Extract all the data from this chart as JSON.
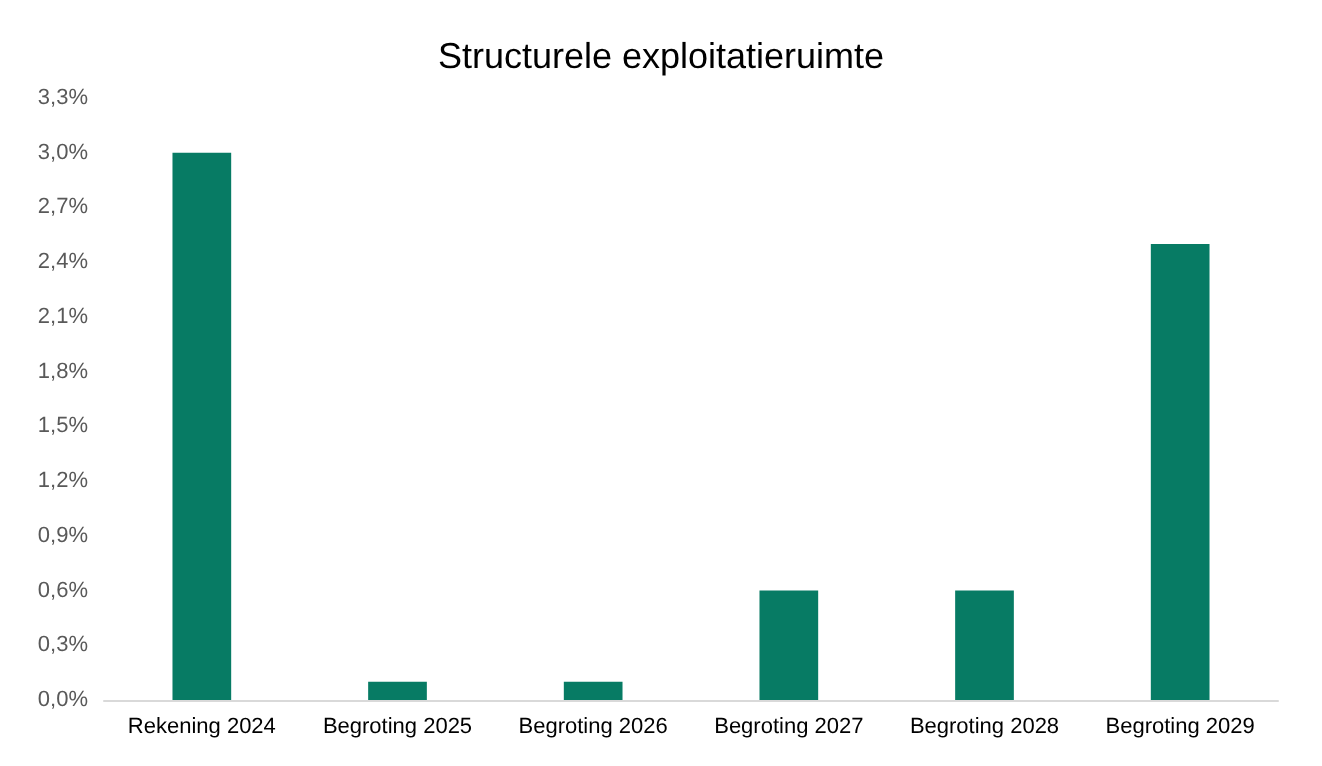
{
  "chart_data": {
    "type": "bar",
    "title": "Structurele exploitatieruimte",
    "categories": [
      "Rekening 2024",
      "Begroting 2025",
      "Begroting 2026",
      "Begroting 2027",
      "Begroting 2028",
      "Begroting 2029"
    ],
    "values": [
      3.0,
      0.1,
      0.1,
      0.6,
      0.6,
      2.5
    ],
    "color": "#077b64",
    "ylim": [
      0,
      3.3
    ],
    "yticks": [
      {
        "value": 0,
        "label": "0,0%"
      },
      {
        "value": 0.3,
        "label": "0,3%"
      },
      {
        "value": 0.6,
        "label": "0,6%"
      },
      {
        "value": 0.9,
        "label": "0,9%"
      },
      {
        "value": 1.2,
        "label": "1,2%"
      },
      {
        "value": 1.5,
        "label": "1,5%"
      },
      {
        "value": 1.8,
        "label": "1,8%"
      },
      {
        "value": 2.1,
        "label": "2,1%"
      },
      {
        "value": 2.4,
        "label": "2,4%"
      },
      {
        "value": 2.7,
        "label": "2,7%"
      },
      {
        "value": 3.0,
        "label": "3,0%"
      },
      {
        "value": 3.3,
        "label": "3,3%"
      }
    ],
    "grid": false
  }
}
